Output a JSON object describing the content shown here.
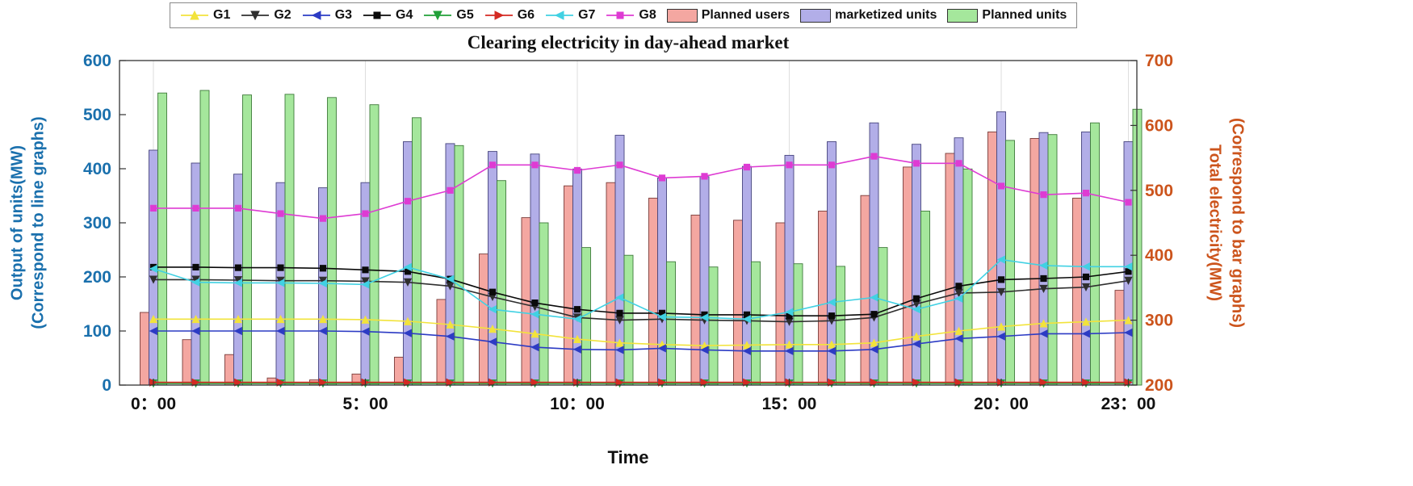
{
  "title": "Clearing electricity in day-ahead market",
  "left_axis": {
    "label_line1": "Output of units(MW)",
    "label_line2": "(Correspond to line graphs)",
    "ticks": [
      0,
      100,
      200,
      300,
      400,
      500,
      600
    ],
    "color": "#1a70ad"
  },
  "right_axis": {
    "label_line1": "Total electricity(MW)",
    "label_line2": "(Correspond to bar graphs)",
    "ticks": [
      200,
      300,
      400,
      500,
      600,
      700
    ],
    "color": "#cc541c"
  },
  "x_axis": {
    "label": "Time",
    "tick_hours": [
      0,
      5,
      10,
      15,
      20,
      23
    ],
    "tick_labels": [
      "0：00",
      "5：00",
      "10：00",
      "15：00",
      "20：00",
      "23：00"
    ]
  },
  "legend": {
    "line_items": [
      {
        "label": "G1",
        "color": "#f2e33b",
        "marker": "triangle-up"
      },
      {
        "label": "G2",
        "color": "#2f2f2f",
        "marker": "triangle-down"
      },
      {
        "label": "G3",
        "color": "#2c3bc4",
        "marker": "triangle-left"
      },
      {
        "label": "G4",
        "color": "#0a0a0a",
        "marker": "square"
      },
      {
        "label": "G5",
        "color": "#21a038",
        "marker": "triangle-down"
      },
      {
        "label": "G6",
        "color": "#d42a23",
        "marker": "triangle-right"
      },
      {
        "label": "G7",
        "color": "#41d1e3",
        "marker": "triangle-left"
      },
      {
        "label": "G8",
        "color": "#de3bd3",
        "marker": "square"
      }
    ],
    "bar_items": [
      {
        "label": "Planned users",
        "fill": "#f4a7a1",
        "edge": "#7a3b38"
      },
      {
        "label": "marketized units",
        "fill": "#b2aee8",
        "edge": "#46457e"
      },
      {
        "label": "Planned units",
        "fill": "#a5e79c",
        "edge": "#3e7a3a"
      }
    ]
  },
  "chart_data": [
    {
      "type": "bar",
      "title": "Clearing electricity in day-ahead market",
      "axis": "right",
      "ylabel": "Total electricity(MW) (Correspond to bar graphs)",
      "ylim": [
        200,
        700
      ],
      "x": [
        0,
        1,
        2,
        3,
        4,
        5,
        6,
        7,
        8,
        9,
        10,
        11,
        12,
        13,
        14,
        15,
        16,
        17,
        18,
        19,
        20,
        21,
        22,
        23
      ],
      "series": [
        {
          "name": "Planned users",
          "color": "#f4a7a1",
          "edge": "#7a3b38",
          "values": [
            312,
            270,
            247,
            211,
            208,
            217,
            243,
            332,
            402,
            458,
            507,
            512,
            488,
            462,
            454,
            450,
            468,
            492,
            536,
            557,
            590,
            580,
            488,
            346
          ]
        },
        {
          "name": "marketized units",
          "color": "#b2aee8",
          "edge": "#46457e",
          "values": [
            562,
            542,
            525,
            512,
            504,
            512,
            575,
            572,
            560,
            556,
            533,
            585,
            519,
            521,
            537,
            554,
            575,
            604,
            571,
            581,
            621,
            589,
            590,
            575
          ]
        },
        {
          "name": "Planned units",
          "color": "#a5e79c",
          "edge": "#3e7a3a",
          "values": [
            650,
            654,
            647,
            648,
            643,
            632,
            612,
            569,
            515,
            450,
            412,
            400,
            390,
            382,
            390,
            387,
            383,
            412,
            468,
            533,
            577,
            586,
            604,
            625
          ]
        }
      ]
    },
    {
      "type": "line",
      "axis": "left",
      "ylabel": "Output of units(MW) (Correspond to line graphs)",
      "ylim": [
        0,
        600
      ],
      "x": [
        0,
        1,
        2,
        3,
        4,
        5,
        6,
        7,
        8,
        9,
        10,
        11,
        12,
        13,
        14,
        15,
        16,
        17,
        18,
        19,
        20,
        21,
        22,
        23
      ],
      "series": [
        {
          "name": "G1",
          "color": "#f2e33b",
          "marker": "triangle-up",
          "values": [
            122,
            122,
            122,
            122,
            122,
            121,
            118,
            112,
            104,
            95,
            85,
            78,
            75,
            73,
            74,
            75,
            75,
            78,
            90,
            100,
            108,
            114,
            117,
            120
          ]
        },
        {
          "name": "G2",
          "color": "#2f2f2f",
          "marker": "triangle-down",
          "values": [
            195,
            195,
            194,
            193,
            193,
            192,
            190,
            183,
            163,
            145,
            125,
            120,
            122,
            120,
            119,
            117,
            119,
            125,
            150,
            170,
            172,
            178,
            181,
            193
          ]
        },
        {
          "name": "G3",
          "color": "#2c3bc4",
          "marker": "triangle-left",
          "values": [
            100,
            100,
            100,
            100,
            100,
            99,
            96,
            90,
            80,
            70,
            66,
            65,
            68,
            65,
            63,
            63,
            63,
            66,
            76,
            86,
            90,
            95,
            95,
            97
          ]
        },
        {
          "name": "G4",
          "color": "#0a0a0a",
          "marker": "square",
          "values": [
            218,
            218,
            217,
            217,
            216,
            213,
            210,
            196,
            172,
            152,
            140,
            133,
            133,
            130,
            130,
            128,
            128,
            131,
            160,
            183,
            195,
            197,
            200,
            210
          ]
        },
        {
          "name": "G5",
          "color": "#21a038",
          "marker": "triangle-down",
          "values": [
            3,
            3,
            3,
            3,
            3,
            3,
            3,
            3,
            3,
            3,
            3,
            3,
            3,
            3,
            3,
            3,
            3,
            3,
            3,
            3,
            3,
            3,
            3,
            3
          ]
        },
        {
          "name": "G6",
          "color": "#d42a23",
          "marker": "triangle-right",
          "values": [
            5,
            5,
            5,
            5,
            5,
            5,
            5,
            5,
            5,
            5,
            5,
            5,
            5,
            5,
            5,
            5,
            5,
            5,
            5,
            5,
            5,
            5,
            5,
            5
          ]
        },
        {
          "name": "G7",
          "color": "#41d1e3",
          "marker": "triangle-left",
          "values": [
            215,
            190,
            189,
            189,
            188,
            186,
            218,
            196,
            140,
            131,
            122,
            162,
            126,
            125,
            122,
            135,
            153,
            162,
            140,
            160,
            232,
            221,
            219,
            219
          ]
        },
        {
          "name": "G8",
          "color": "#de3bd3",
          "marker": "square",
          "values": [
            327,
            327,
            327,
            317,
            308,
            317,
            340,
            360,
            407,
            407,
            397,
            407,
            383,
            386,
            403,
            407,
            407,
            423,
            410,
            410,
            368,
            352,
            355,
            338
          ]
        }
      ]
    }
  ]
}
